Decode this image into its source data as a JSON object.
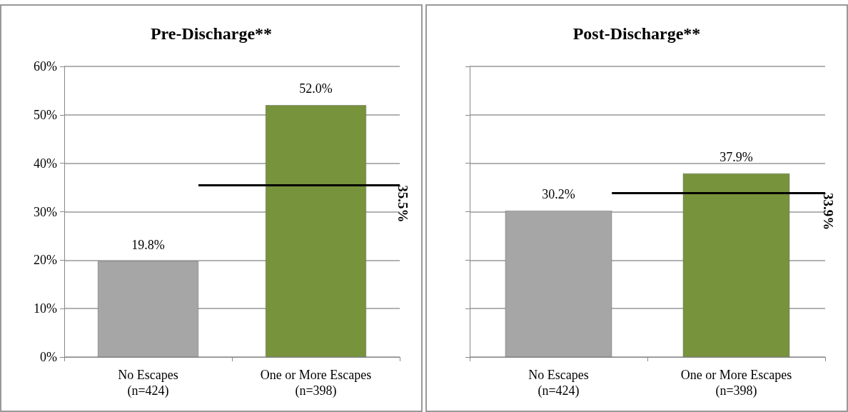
{
  "chart_data": [
    {
      "type": "bar",
      "title": "Pre-Discharge**",
      "categories": [
        "No Escapes\n(n=424)",
        "One or More Escapes\n(n=398)"
      ],
      "values": [
        19.8,
        52.0
      ],
      "value_labels": [
        "19.8%",
        "52.0%"
      ],
      "colors": [
        "#a6a6a6",
        "#77933c"
      ],
      "ylim": [
        0,
        60
      ],
      "yticks": [
        {
          "value": 0,
          "label": "0%"
        },
        {
          "value": 10,
          "label": "10%"
        },
        {
          "value": 20,
          "label": "20%"
        },
        {
          "value": 30,
          "label": "30%"
        },
        {
          "value": 40,
          "label": "40%"
        },
        {
          "value": 50,
          "label": "50%"
        },
        {
          "value": 60,
          "label": "60%"
        }
      ],
      "grid": "y",
      "ref_lines": [
        {
          "axis": "y",
          "value": 35.5,
          "label": "35.5%",
          "color": "#000000"
        }
      ]
    },
    {
      "type": "bar",
      "title": "Post-Discharge**",
      "categories": [
        "No Escapes\n(n=424)",
        "One or More Escapes\n(n=398)"
      ],
      "values": [
        30.2,
        37.9
      ],
      "value_labels": [
        "30.2%",
        "37.9%"
      ],
      "colors": [
        "#a6a6a6",
        "#77933c"
      ],
      "ylim": [
        0,
        60
      ],
      "yticks": [
        {
          "value": 0,
          "label": null
        },
        {
          "value": 10,
          "label": null
        },
        {
          "value": 20,
          "label": null
        },
        {
          "value": 30,
          "label": null
        },
        {
          "value": 40,
          "label": null
        },
        {
          "value": 50,
          "label": null
        },
        {
          "value": 60,
          "label": null
        }
      ],
      "grid": "y",
      "ref_lines": [
        {
          "axis": "y",
          "value": 33.9,
          "label": "33.9%",
          "color": "#000000"
        }
      ]
    }
  ]
}
